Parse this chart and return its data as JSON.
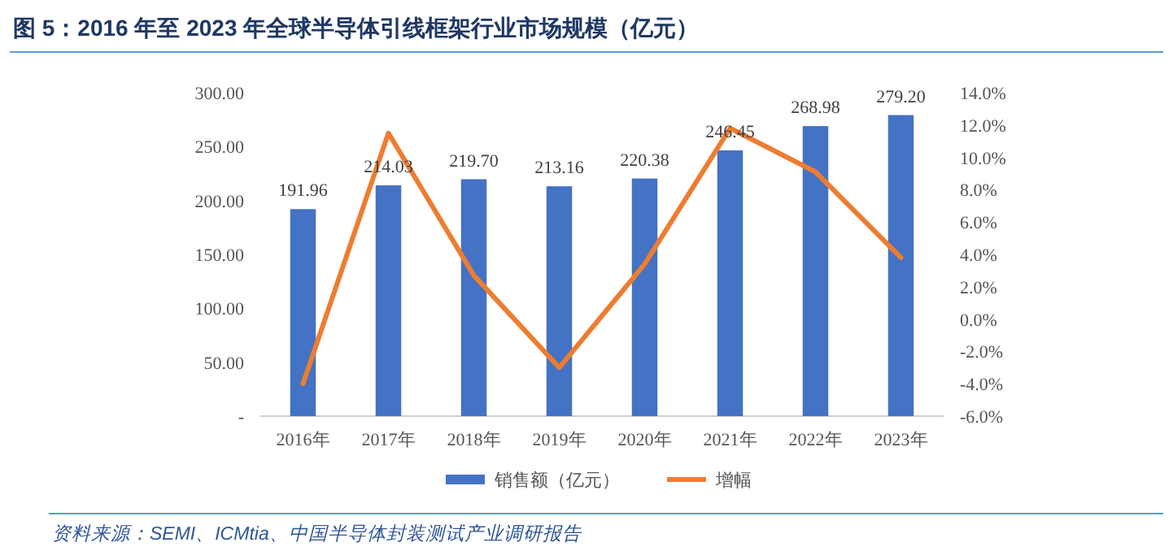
{
  "chart_data": {
    "type": "bar",
    "title": "图 5：2016 年至 2023 年全球半导体引线框架行业市场规模（亿元）",
    "categories": [
      "2016年",
      "2017年",
      "2018年",
      "2019年",
      "2020年",
      "2021年",
      "2022年",
      "2023年"
    ],
    "series": [
      {
        "name": "销售额（亿元）",
        "color": "#4472c4",
        "values": [
          191.96,
          214.03,
          219.7,
          213.16,
          220.38,
          246.45,
          268.98,
          279.2
        ],
        "value_labels": [
          "191.96",
          "214.03",
          "219.70",
          "213.16",
          "220.38",
          "246.45",
          "268.98",
          "279.20"
        ]
      },
      {
        "name": "增幅",
        "type": "line",
        "axis": "y2",
        "color": "#ed7d31",
        "values": [
          -4.0,
          11.5,
          2.7,
          -3.0,
          3.4,
          11.8,
          9.1,
          3.8
        ]
      }
    ],
    "ylim": [
      0,
      300
    ],
    "yticks": [
      {
        "value": 0,
        "label": "-"
      },
      {
        "value": 50,
        "label": "50.00"
      },
      {
        "value": 100,
        "label": "100.00"
      },
      {
        "value": 150,
        "label": "150.00"
      },
      {
        "value": 200,
        "label": "200.00"
      },
      {
        "value": 250,
        "label": "250.00"
      },
      {
        "value": 300,
        "label": "300.00"
      }
    ],
    "y2lim": [
      -6,
      14
    ],
    "y2ticks": [
      {
        "value": -6,
        "label": "-6.0%"
      },
      {
        "value": -4,
        "label": "-4.0%"
      },
      {
        "value": -2,
        "label": "-2.0%"
      },
      {
        "value": 0,
        "label": "0.0%"
      },
      {
        "value": 2,
        "label": "2.0%"
      },
      {
        "value": 4,
        "label": "4.0%"
      },
      {
        "value": 6,
        "label": "6.0%"
      },
      {
        "value": 8,
        "label": "8.0%"
      },
      {
        "value": 10,
        "label": "10.0%"
      },
      {
        "value": 12,
        "label": "12.0%"
      },
      {
        "value": 14,
        "label": "14.0%"
      }
    ],
    "legend": "bottom",
    "annotations": [
      "资料来源：SEMI、ICMtia、中国半导体封装测试产业调研报告"
    ]
  }
}
